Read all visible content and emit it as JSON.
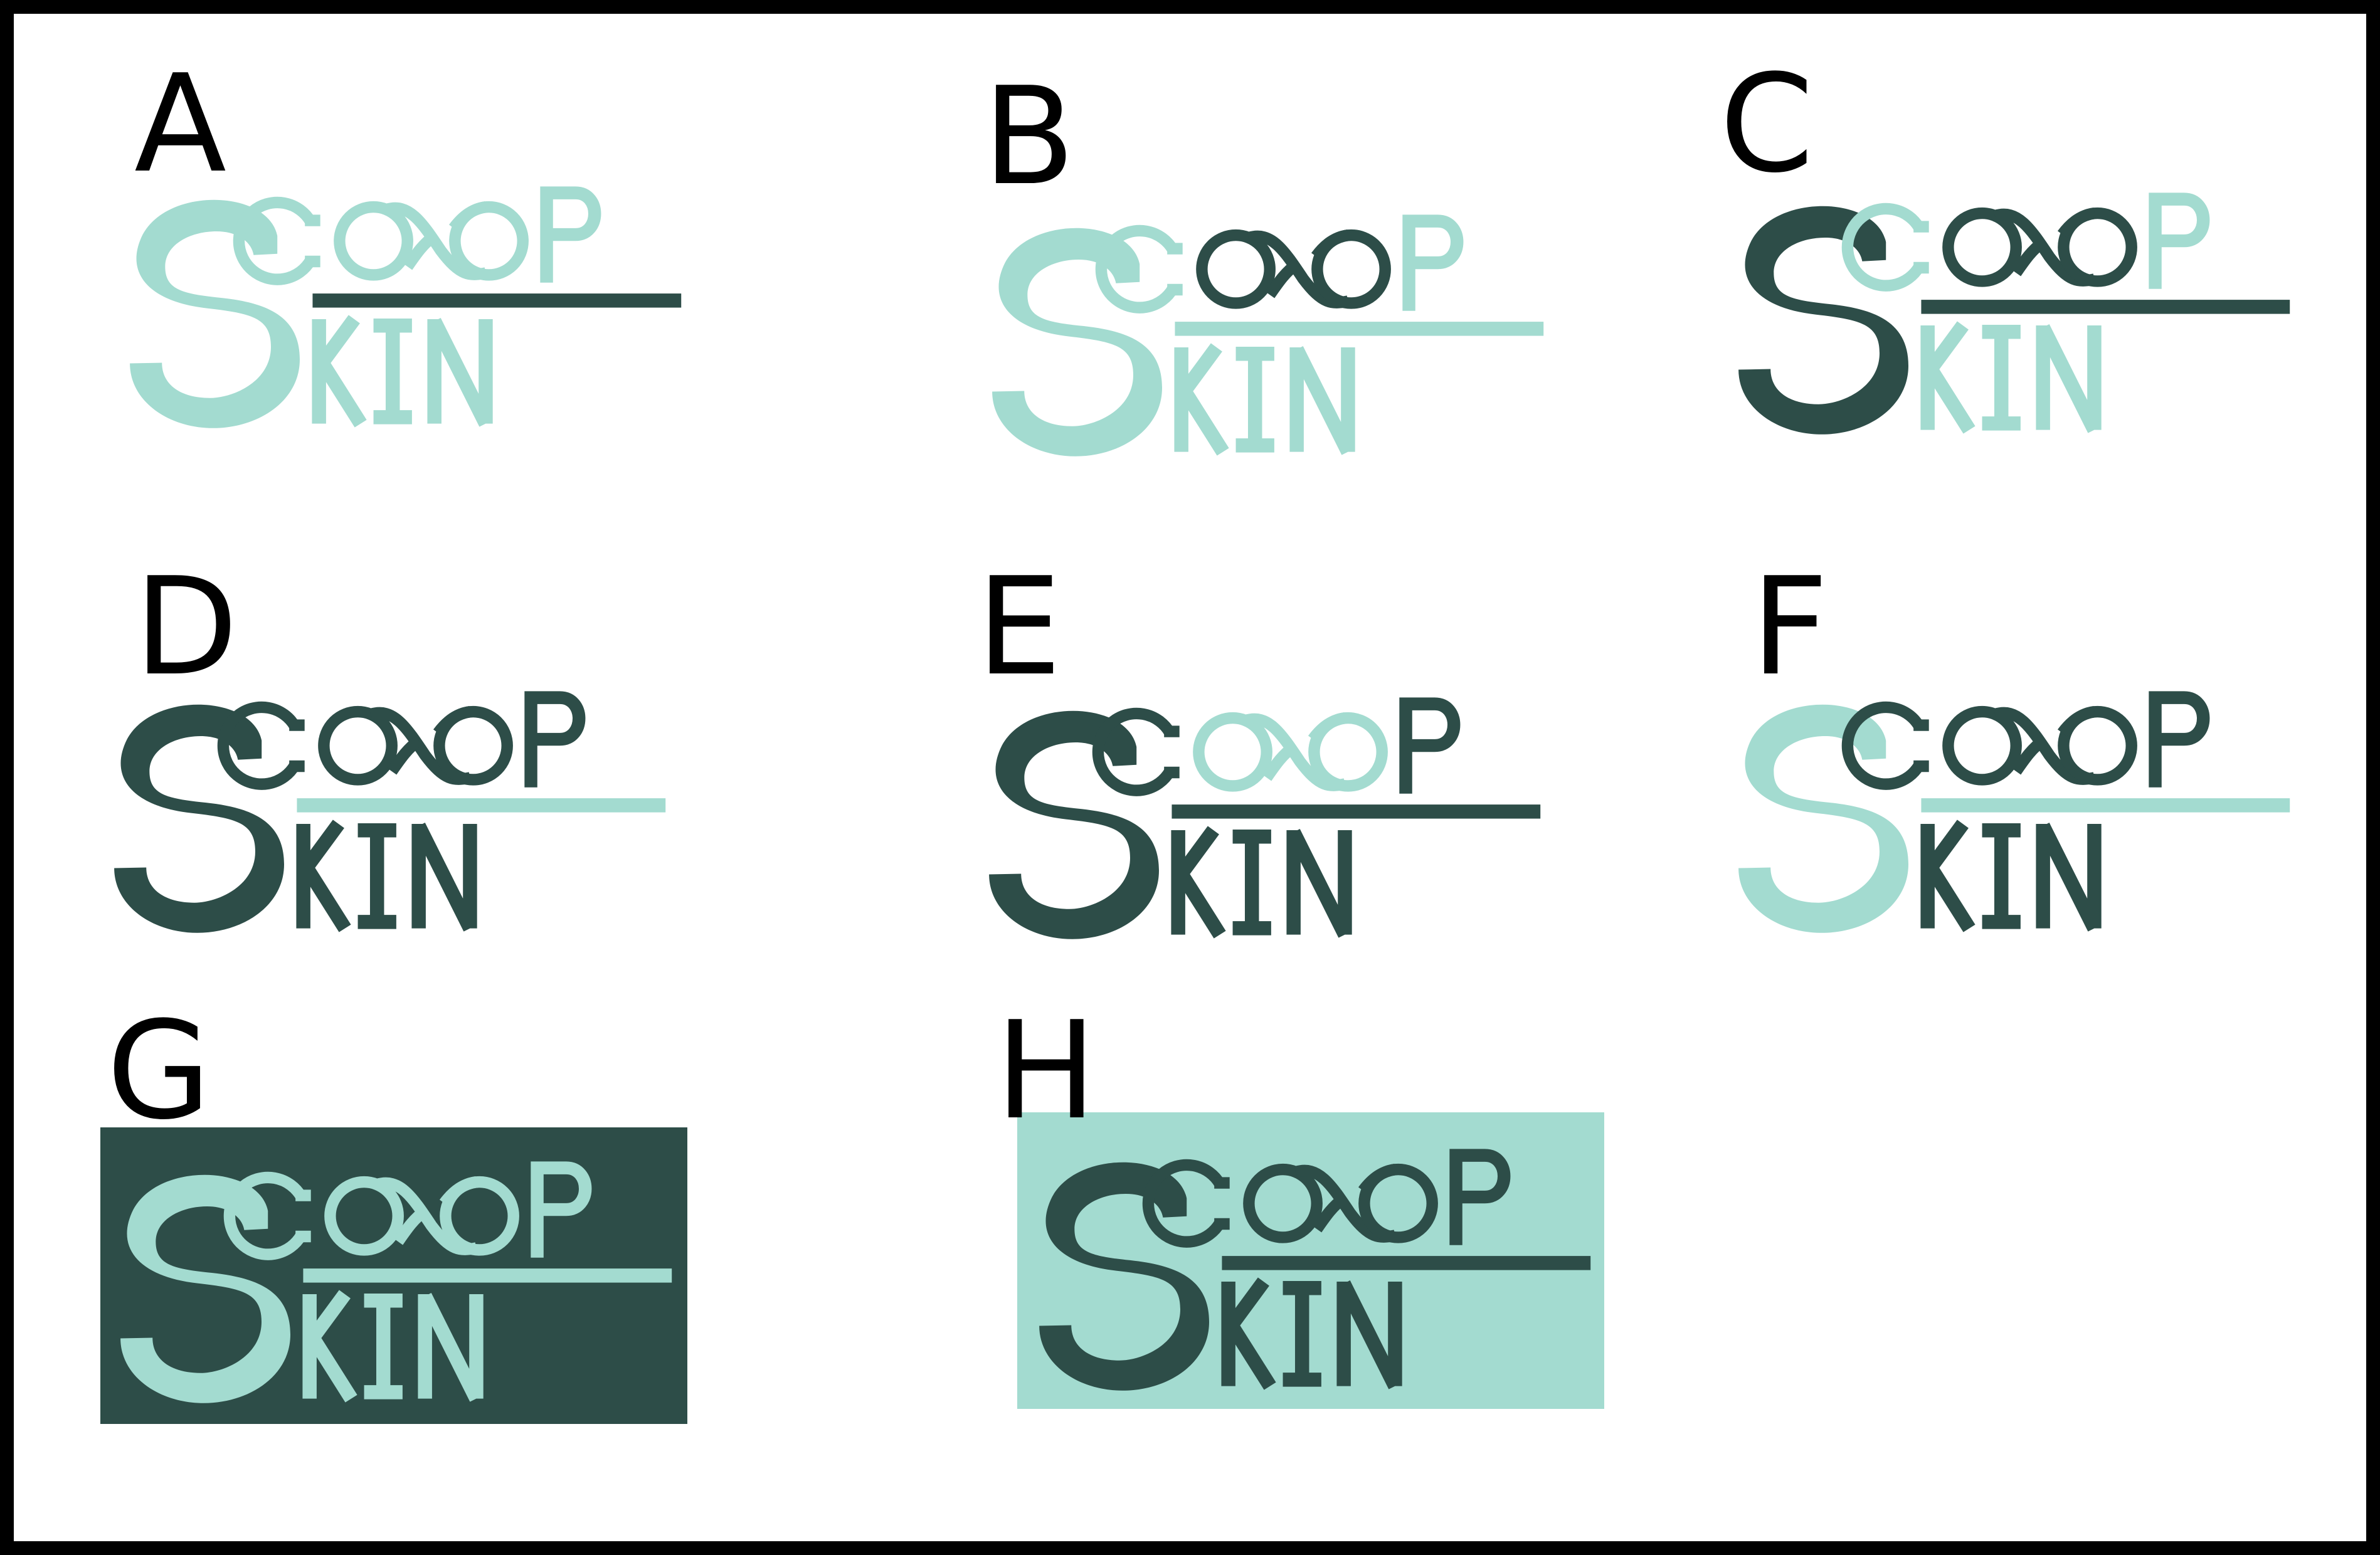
{
  "sheet": {
    "colors": {
      "teal_light": "#a3dbd0",
      "teal_dark": "#2d4d48",
      "frame": "#000000",
      "background": "#ffffff"
    }
  },
  "variants": [
    {
      "label": "A",
      "s": "light",
      "coop": "light",
      "p": "light",
      "rule": "dark",
      "kin": "light",
      "background": "none"
    },
    {
      "label": "B",
      "s": "light",
      "coop": "light",
      "oop": "dark",
      "p": "light",
      "rule": "light",
      "kin": "light",
      "background": "none"
    },
    {
      "label": "C",
      "s": "dark",
      "coop": "light",
      "oop": "dark",
      "p": "light",
      "rule": "dark",
      "kin": "light",
      "background": "none"
    },
    {
      "label": "D",
      "s": "dark",
      "coop": "dark",
      "p": "dark",
      "rule": "light",
      "kin": "dark",
      "background": "none"
    },
    {
      "label": "E",
      "s": "dark",
      "coop": "dark",
      "oop": "light",
      "p": "dark",
      "rule": "dark",
      "kin": "dark",
      "background": "none"
    },
    {
      "label": "F",
      "s": "light",
      "coop": "dark",
      "p": "dark",
      "rule": "light",
      "kin": "dark",
      "background": "none"
    },
    {
      "label": "G",
      "s": "light",
      "coop": "light",
      "p": "light",
      "rule": "light",
      "kin": "light",
      "background": "dark"
    },
    {
      "label": "H",
      "s": "dark",
      "coop": "dark",
      "p": "dark",
      "rule": "dark",
      "kin": "dark",
      "background": "light"
    }
  ]
}
